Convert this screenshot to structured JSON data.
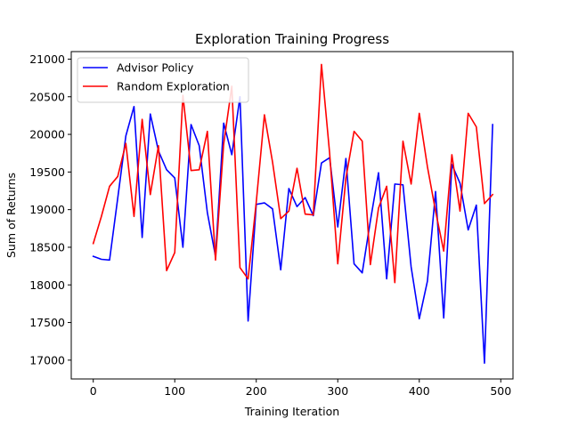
{
  "chart_data": {
    "type": "line",
    "title": "Exploration Training Progress",
    "xlabel": "Training Iteration",
    "ylabel": "Sum of Returns",
    "xlim": [
      -27,
      515
    ],
    "ylim": [
      16750,
      21100
    ],
    "xticks": [
      0,
      100,
      200,
      300,
      400,
      500
    ],
    "yticks": [
      17000,
      17500,
      18000,
      18500,
      19000,
      19500,
      20000,
      20500,
      21000
    ],
    "legend_position": "upper-left",
    "grid": false,
    "x": [
      0,
      10,
      20,
      30,
      40,
      50,
      60,
      70,
      80,
      90,
      100,
      110,
      120,
      130,
      140,
      150,
      160,
      170,
      180,
      190,
      200,
      210,
      220,
      230,
      240,
      250,
      260,
      270,
      280,
      290,
      300,
      310,
      320,
      330,
      340,
      350,
      360,
      370,
      380,
      390,
      400,
      410,
      420,
      430,
      440,
      450,
      460,
      470,
      480,
      490
    ],
    "series": [
      {
        "name": "Advisor Policy",
        "color": "#0000ff",
        "values": [
          18380,
          18340,
          18330,
          19150,
          19980,
          20370,
          18630,
          20270,
          19780,
          19530,
          19420,
          18500,
          20130,
          19850,
          18960,
          18380,
          20150,
          19730,
          20500,
          17520,
          19070,
          19090,
          19010,
          18200,
          19280,
          19040,
          19160,
          18920,
          19620,
          19690,
          18770,
          19680,
          18280,
          18160,
          18850,
          19490,
          18080,
          19340,
          19330,
          18240,
          17550,
          18050,
          19240,
          17560,
          19600,
          19350,
          18730,
          19060,
          16960,
          20130
        ]
      },
      {
        "name": "Random Exploration",
        "color": "#ff0000",
        "values": [
          18550,
          18910,
          19310,
          19440,
          19880,
          18910,
          20200,
          19200,
          19850,
          18190,
          18430,
          20520,
          19520,
          19530,
          20040,
          18330,
          19870,
          20640,
          18230,
          18080,
          19100,
          20260,
          19630,
          18880,
          18980,
          19550,
          18940,
          18930,
          20930,
          19750,
          18280,
          19420,
          20040,
          19910,
          18270,
          19020,
          19310,
          18030,
          19910,
          19340,
          20280,
          19570,
          18980,
          18450,
          19730,
          18980,
          20280,
          20100,
          19080,
          19200
        ]
      }
    ]
  }
}
